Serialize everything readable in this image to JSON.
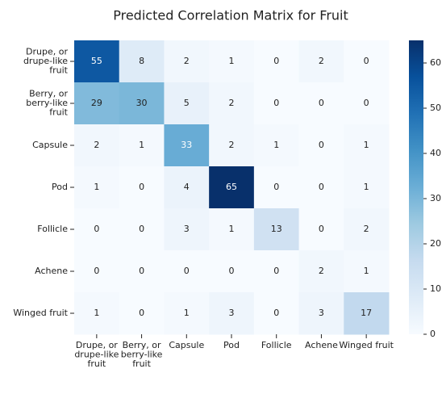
{
  "chart_data": {
    "type": "heatmap",
    "title": "Predicted Correlation Matrix for Fruit",
    "rows": [
      [
        "Drupe, or",
        "drupe-like",
        "fruit"
      ],
      [
        "Berry, or",
        "berry-like",
        "fruit"
      ],
      [
        "Capsule"
      ],
      [
        "Pod"
      ],
      [
        "Follicle"
      ],
      [
        "Achene"
      ],
      [
        "Winged fruit"
      ]
    ],
    "columns": [
      [
        "Drupe, or",
        "drupe-like",
        "fruit"
      ],
      [
        "Berry, or",
        "berry-like",
        "fruit"
      ],
      [
        "Capsule"
      ],
      [
        "Pod"
      ],
      [
        "Follicle"
      ],
      [
        "Achene"
      ],
      [
        "Winged fruit"
      ]
    ],
    "z": [
      [
        55,
        8,
        2,
        1,
        0,
        2,
        0
      ],
      [
        29,
        30,
        5,
        2,
        0,
        0,
        0
      ],
      [
        2,
        1,
        33,
        2,
        1,
        0,
        1
      ],
      [
        1,
        0,
        4,
        65,
        0,
        0,
        1
      ],
      [
        0,
        0,
        3,
        1,
        13,
        0,
        2
      ],
      [
        0,
        0,
        0,
        0,
        0,
        2,
        1
      ],
      [
        1,
        0,
        1,
        3,
        0,
        3,
        17
      ]
    ],
    "colormap": "Blues",
    "clim": [
      0,
      65
    ],
    "cticks": [
      0,
      10,
      20,
      30,
      40,
      50,
      60
    ]
  }
}
